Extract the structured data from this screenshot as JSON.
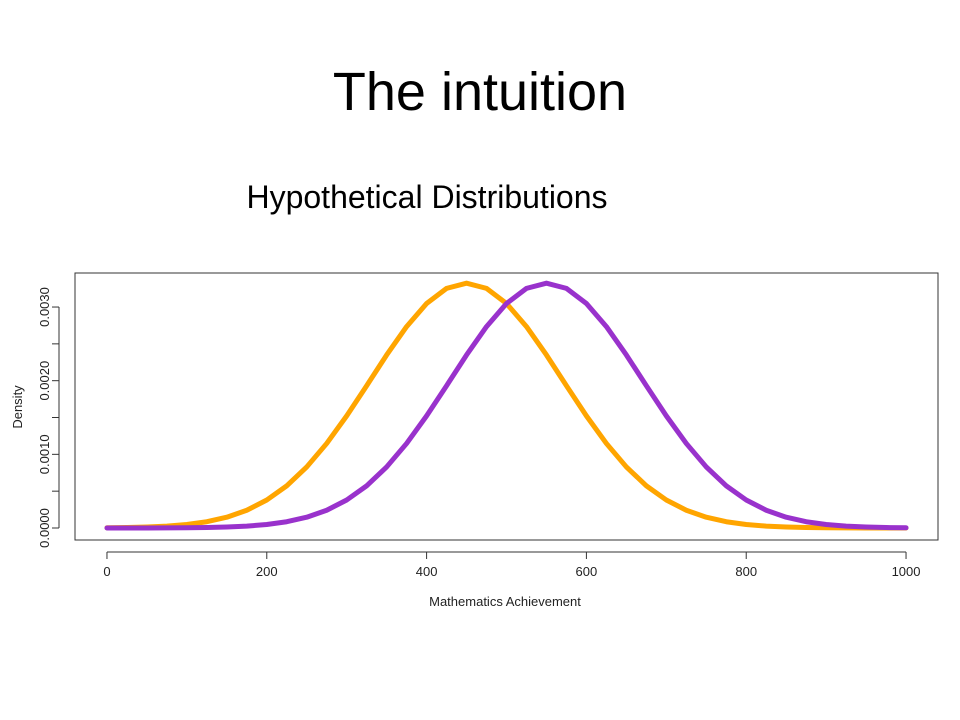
{
  "slide": {
    "title": "The intuition"
  },
  "chart_data": {
    "type": "line",
    "title": "Hypothetical Distributions",
    "x_label": "Mathematics Achievement",
    "y_label": "Density",
    "x": [
      0,
      25,
      50,
      75,
      100,
      125,
      150,
      175,
      200,
      225,
      250,
      275,
      300,
      325,
      350,
      375,
      400,
      425,
      450,
      475,
      500,
      525,
      550,
      575,
      600,
      625,
      650,
      675,
      700,
      725,
      750,
      775,
      800,
      825,
      850,
      875,
      900,
      925,
      950,
      975,
      1000
    ],
    "series": [
      {
        "name": "Orange",
        "color": "#ffa500",
        "values": [
          2.9e-06,
          6.3e-06,
          1.29e-05,
          2.52e-05,
          4.73e-05,
          8.49e-05,
          0.000146,
          0.000241,
          0.00038,
          0.000573,
          0.000829,
          0.001148,
          0.001522,
          0.001932,
          0.002349,
          0.002734,
          0.003048,
          0.003253,
          0.003324,
          0.003253,
          0.003048,
          0.002734,
          0.002349,
          0.001932,
          0.001522,
          0.001148,
          0.000829,
          0.000573,
          0.00038,
          0.000241,
          0.000146,
          8.49e-05,
          4.73e-05,
          2.52e-05,
          1.29e-05,
          6.3e-06,
          2.9e-06,
          1.3e-06,
          6e-07,
          2e-07,
          1e-07
        ]
      },
      {
        "name": "Purple",
        "color": "#9932cc",
        "values": [
          1e-07,
          2e-07,
          6e-07,
          1.3e-06,
          2.9e-06,
          6.3e-06,
          1.29e-05,
          2.52e-05,
          4.73e-05,
          8.49e-05,
          0.000146,
          0.000241,
          0.00038,
          0.000573,
          0.000829,
          0.001148,
          0.001522,
          0.001932,
          0.002349,
          0.002734,
          0.003048,
          0.003253,
          0.003324,
          0.003253,
          0.003048,
          0.002734,
          0.002349,
          0.001932,
          0.001522,
          0.001148,
          0.000829,
          0.000573,
          0.00038,
          0.000241,
          0.000146,
          8.49e-05,
          4.73e-05,
          2.52e-05,
          1.29e-05,
          6.3e-06,
          2.9e-06
        ]
      }
    ],
    "xlim": [
      -40,
      1040
    ],
    "ylim": [
      -0.000163,
      0.003462
    ],
    "xticks": [
      0,
      200,
      400,
      600,
      800,
      1000
    ],
    "yticks": [
      {
        "value": 0,
        "label": "0.0000"
      },
      {
        "value": 0.001,
        "label": "0.0010"
      },
      {
        "value": 0.002,
        "label": "0.0020"
      },
      {
        "value": 0.003,
        "label": "0.0030"
      }
    ],
    "yminorticks": [
      0.0005,
      0.0015,
      0.0025
    ],
    "line_width": 5
  }
}
